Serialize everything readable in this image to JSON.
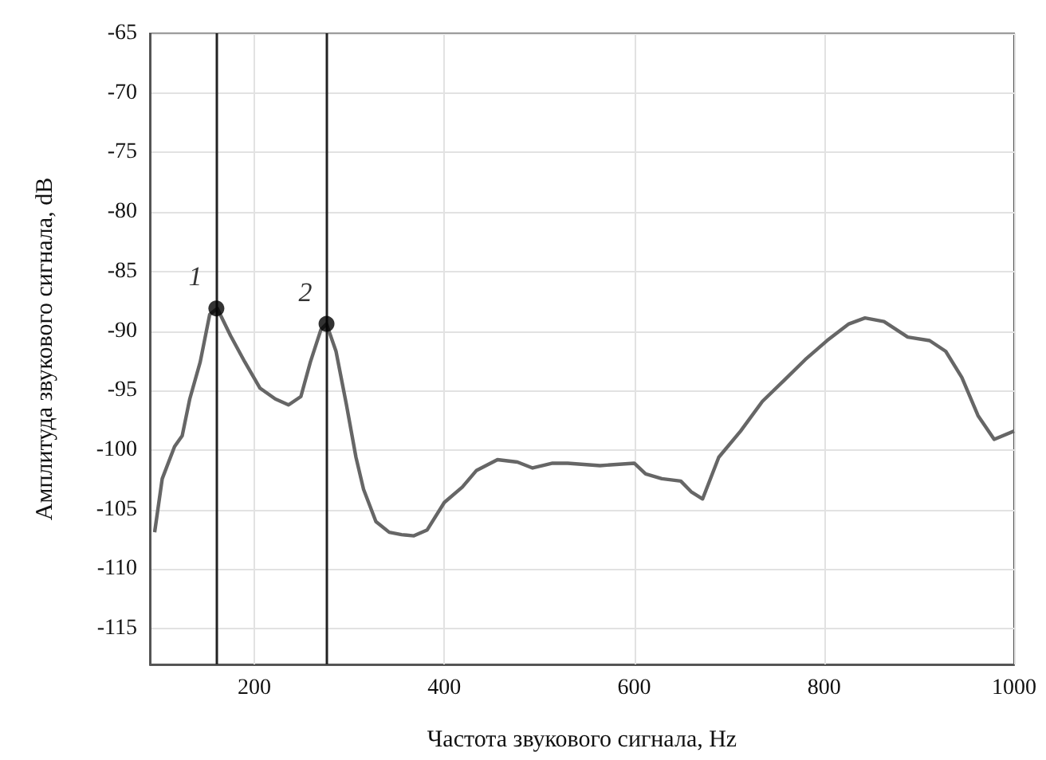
{
  "chart_data": {
    "type": "line",
    "xlabel": "Частота звукового сигнала, Hz",
    "ylabel": "Амплитуда звукового сигнала, dB",
    "xlim": [
      90,
      1000
    ],
    "xticks": [
      200,
      400,
      600,
      800,
      1000
    ],
    "ylim": [
      -118,
      -65
    ],
    "yticks": [
      -65,
      -70,
      -75,
      -80,
      -85,
      -90,
      -95,
      -100,
      -105,
      -110,
      -115
    ],
    "grid": true,
    "series": [
      {
        "color": "#666666",
        "marker": "none",
        "x": [
          95,
          103,
          116,
          124,
          132,
          143,
          153,
          161,
          175,
          190,
          206,
          222,
          236,
          249,
          259,
          270,
          276,
          286,
          297,
          307,
          315,
          328,
          342,
          355,
          368,
          382,
          400,
          419,
          434,
          456,
          477,
          493,
          514,
          530,
          564,
          600,
          612,
          629,
          649,
          660,
          672,
          689,
          712,
          735,
          757,
          780,
          803,
          826,
          843,
          863,
          888,
          911,
          928,
          945,
          962,
          979,
          1000
        ],
        "values": [
          -106.9,
          -102.4,
          -99.7,
          -98.8,
          -95.7,
          -92.6,
          -88.6,
          -88.1,
          -90.4,
          -92.6,
          -94.8,
          -95.7,
          -96.2,
          -95.5,
          -92.6,
          -89.9,
          -89.4,
          -91.7,
          -96.2,
          -100.6,
          -103.3,
          -106.0,
          -106.9,
          -107.1,
          -107.2,
          -106.7,
          -104.4,
          -103.1,
          -101.7,
          -100.8,
          -101.0,
          -101.5,
          -101.1,
          -101.1,
          -101.3,
          -101.1,
          -102.0,
          -102.4,
          -102.6,
          -103.5,
          -104.1,
          -100.6,
          -98.4,
          -95.9,
          -94.2,
          -92.4,
          -90.8,
          -89.4,
          -88.9,
          -89.2,
          -90.5,
          -90.8,
          -91.7,
          -93.9,
          -97.1,
          -99.1,
          -98.4
        ]
      },
      {
        "type": "scatter",
        "color": "#000000",
        "marker": "circle",
        "x": [
          160,
          276
        ],
        "values": [
          -88.1,
          -89.4
        ]
      }
    ],
    "ref_lines": [
      {
        "axis": "x",
        "value": 160,
        "color": "#222222"
      },
      {
        "axis": "x",
        "value": 276,
        "color": "#222222"
      }
    ],
    "annotations": [
      {
        "text": "1",
        "x": 160,
        "y": -88.1
      },
      {
        "text": "2",
        "x": 276,
        "y": -89.4
      }
    ]
  }
}
